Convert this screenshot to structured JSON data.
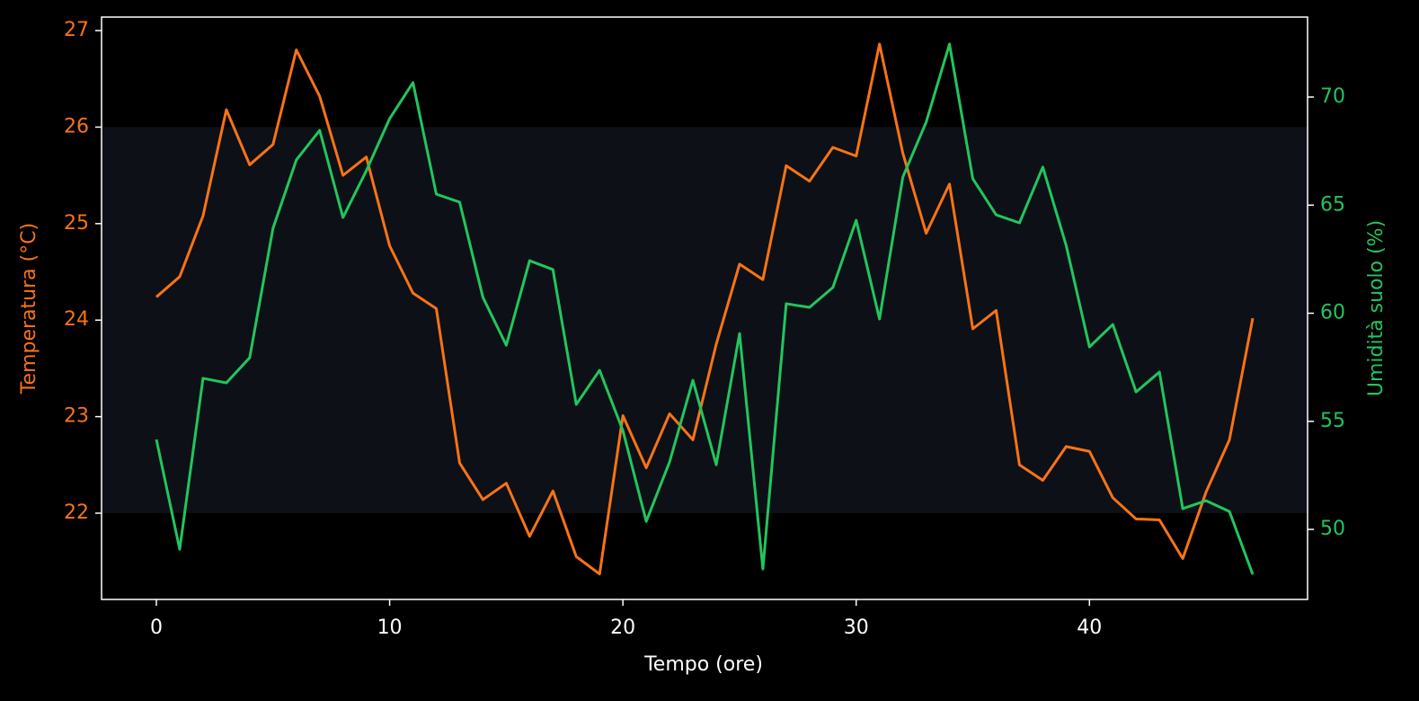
{
  "chart_data": {
    "type": "line",
    "xlabel": "Tempo (ore)",
    "ylabel": "Temperatura (°C)",
    "y2label": "Umidità suolo (%)",
    "x": [
      0,
      1,
      2,
      3,
      4,
      5,
      6,
      7,
      8,
      9,
      10,
      11,
      12,
      13,
      14,
      15,
      16,
      17,
      18,
      19,
      20,
      21,
      22,
      23,
      24,
      25,
      26,
      27,
      28,
      29,
      30,
      31,
      32,
      33,
      34,
      35,
      36,
      37,
      38,
      39,
      40,
      41,
      42,
      43,
      44,
      45,
      46,
      47
    ],
    "series": [
      {
        "color": "#f97316",
        "axis": "y",
        "values": [
          24.24,
          24.45,
          25.08,
          26.18,
          25.61,
          25.82,
          26.8,
          26.32,
          25.5,
          25.69,
          24.77,
          24.28,
          24.12,
          22.52,
          22.14,
          22.31,
          21.76,
          22.23,
          21.55,
          21.37,
          23.01,
          22.47,
          23.03,
          22.76,
          23.75,
          24.58,
          24.42,
          25.6,
          25.44,
          25.79,
          25.7,
          26.86,
          25.73,
          24.9,
          25.41,
          23.91,
          24.1,
          22.5,
          22.34,
          22.69,
          22.64,
          22.16,
          21.94,
          21.93,
          21.53,
          22.22,
          22.76,
          24.02
        ]
      },
      {
        "color": "#22c55e",
        "axis": "y2",
        "values": [
          54.16,
          49.08,
          56.99,
          56.78,
          57.94,
          63.93,
          67.09,
          68.46,
          64.43,
          66.59,
          69.0,
          70.67,
          65.51,
          65.14,
          60.73,
          58.52,
          62.43,
          62.02,
          55.78,
          57.36,
          54.57,
          50.37,
          53.12,
          56.9,
          52.99,
          59.06,
          48.17,
          60.44,
          60.27,
          61.19,
          64.3,
          59.73,
          66.3,
          68.84,
          72.45,
          66.22,
          64.55,
          64.18,
          66.76,
          63.14,
          58.44,
          59.48,
          56.36,
          57.28,
          50.96,
          51.33,
          50.83,
          47.92
        ]
      }
    ],
    "xlim": [
      -2.35,
      49.35
    ],
    "xticks": [
      0,
      10,
      20,
      30,
      40
    ],
    "ylim": [
      21.106,
      27.14
    ],
    "yticks": [
      22,
      23,
      24,
      25,
      26,
      27
    ],
    "y2lim": [
      46.76,
      73.7
    ],
    "y2ticks": [
      50,
      55,
      60,
      65,
      70
    ],
    "span": {
      "ymin": 22,
      "ymax": 26,
      "color": "#0d1117"
    }
  }
}
